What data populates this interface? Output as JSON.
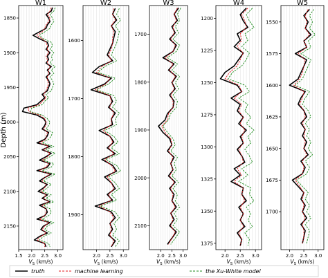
{
  "figure": {
    "ylabel": "Depth (m)",
    "xlabel_main": "V",
    "xlabel_sub": "S",
    "xlabel_unit": " (km/s)",
    "legend": [
      {
        "label": "truth",
        "color": "#000000",
        "style": "solid"
      },
      {
        "label": "machine learning",
        "color": "#e41a1c",
        "style": "dashed"
      },
      {
        "label": "the Xu-White model",
        "color": "#1a8a1a",
        "style": "dashed"
      }
    ]
  },
  "chart_data": [
    {
      "type": "line",
      "title": "W1",
      "xlabel": "Vs (km/s)",
      "ylabel": "Depth (m)",
      "xlim": [
        1.5,
        3.2
      ],
      "xticks": [
        1.5,
        2.0,
        2.5,
        3.0
      ],
      "ylim": [
        1832,
        2184
      ],
      "yticks": [
        1850,
        1900,
        1950,
        2000,
        2050,
        2100,
        2150
      ],
      "y_inverted": true,
      "grid": true,
      "depth": [
        1835,
        1840,
        1845,
        1850,
        1855,
        1860,
        1865,
        1870,
        1875,
        1880,
        1885,
        1890,
        1895,
        1900,
        1905,
        1910,
        1915,
        1920,
        1925,
        1930,
        1935,
        1940,
        1945,
        1950,
        1955,
        1960,
        1965,
        1970,
        1975,
        1980,
        1985,
        1990,
        1995,
        2000,
        2005,
        2010,
        2015,
        2020,
        2025,
        2030,
        2035,
        2040,
        2045,
        2050,
        2055,
        2060,
        2065,
        2070,
        2075,
        2080,
        2085,
        2090,
        2095,
        2100,
        2105,
        2110,
        2115,
        2120,
        2125,
        2130,
        2135,
        2140,
        2145,
        2150,
        2155,
        2160,
        2165,
        2170,
        2175,
        2180
      ],
      "series": [
        {
          "name": "truth",
          "values": [
            2.8,
            2.75,
            2.55,
            2.65,
            2.7,
            2.6,
            2.55,
            2.3,
            2.05,
            2.3,
            2.6,
            2.65,
            2.55,
            2.7,
            2.6,
            2.65,
            2.55,
            2.75,
            2.6,
            2.7,
            2.55,
            2.65,
            2.7,
            2.65,
            2.6,
            2.4,
            2.5,
            2.35,
            2.2,
            1.7,
            1.65,
            2.2,
            2.45,
            2.55,
            2.5,
            2.4,
            2.65,
            2.6,
            2.5,
            2.2,
            2.7,
            2.4,
            2.75,
            2.55,
            2.3,
            2.7,
            2.6,
            2.2,
            2.75,
            2.5,
            2.3,
            2.6,
            2.45,
            2.25,
            2.6,
            2.4,
            2.7,
            2.3,
            2.55,
            2.6,
            2.5,
            2.2,
            2.7,
            2.45,
            2.35,
            2.6,
            2.3,
            2.1,
            2.5,
            2.55
          ]
        },
        {
          "name": "machine learning",
          "values": [
            2.75,
            2.7,
            2.6,
            2.7,
            2.65,
            2.55,
            2.5,
            2.4,
            2.2,
            2.4,
            2.55,
            2.6,
            2.6,
            2.65,
            2.55,
            2.6,
            2.6,
            2.7,
            2.65,
            2.65,
            2.6,
            2.6,
            2.65,
            2.6,
            2.55,
            2.45,
            2.55,
            2.4,
            2.3,
            1.85,
            1.9,
            2.3,
            2.5,
            2.55,
            2.55,
            2.45,
            2.6,
            2.55,
            2.55,
            2.3,
            2.65,
            2.45,
            2.7,
            2.6,
            2.4,
            2.65,
            2.55,
            2.3,
            2.7,
            2.5,
            2.4,
            2.55,
            2.5,
            2.35,
            2.55,
            2.45,
            2.65,
            2.4,
            2.55,
            2.55,
            2.5,
            2.3,
            2.65,
            2.5,
            2.4,
            2.55,
            2.35,
            2.2,
            2.5,
            2.5
          ]
        },
        {
          "name": "the Xu-White model",
          "values": [
            2.9,
            2.85,
            2.7,
            2.8,
            2.85,
            2.75,
            2.7,
            2.5,
            2.3,
            2.45,
            2.75,
            2.8,
            2.7,
            2.85,
            2.75,
            2.8,
            2.7,
            2.9,
            2.75,
            2.85,
            2.7,
            2.8,
            2.85,
            2.8,
            2.75,
            2.55,
            2.65,
            2.5,
            2.4,
            2.0,
            1.95,
            2.4,
            2.6,
            2.7,
            2.65,
            2.55,
            2.8,
            2.75,
            2.65,
            2.4,
            2.85,
            2.55,
            2.9,
            2.7,
            2.45,
            2.85,
            2.75,
            2.4,
            2.9,
            2.65,
            2.45,
            2.75,
            2.6,
            2.4,
            2.75,
            2.55,
            2.85,
            2.45,
            2.7,
            2.75,
            2.65,
            2.4,
            2.85,
            2.6,
            2.5,
            2.75,
            2.45,
            2.3,
            2.65,
            2.7
          ]
        }
      ]
    },
    {
      "type": "line",
      "title": "W2",
      "xlabel": "Vs (km/s)",
      "ylabel": "",
      "xlim": [
        1.5,
        3.2
      ],
      "xticks": [
        2.0,
        2.5,
        3.0
      ],
      "ylim": [
        1540,
        1960
      ],
      "yticks": [
        1600,
        1700,
        1800,
        1900
      ],
      "y_inverted": true,
      "grid": true,
      "depth": [
        1545,
        1555,
        1565,
        1575,
        1585,
        1595,
        1605,
        1615,
        1625,
        1635,
        1645,
        1655,
        1665,
        1675,
        1685,
        1695,
        1705,
        1715,
        1725,
        1735,
        1745,
        1755,
        1765,
        1775,
        1785,
        1795,
        1805,
        1815,
        1825,
        1835,
        1845,
        1855,
        1865,
        1875,
        1885,
        1895,
        1905,
        1915,
        1925,
        1935,
        1945,
        1955
      ],
      "series": [
        {
          "name": "truth",
          "values": [
            2.7,
            2.6,
            2.75,
            2.55,
            2.7,
            2.65,
            2.6,
            2.5,
            2.4,
            2.6,
            2.1,
            1.85,
            2.55,
            2.3,
            1.8,
            2.5,
            2.6,
            2.45,
            2.7,
            2.55,
            2.6,
            2.1,
            2.5,
            2.65,
            2.4,
            2.7,
            2.2,
            2.6,
            2.75,
            2.3,
            2.55,
            2.7,
            2.4,
            2.6,
            1.95,
            2.55,
            2.7,
            2.5,
            2.6,
            2.45,
            2.7,
            2.55
          ]
        },
        {
          "name": "machine learning",
          "values": [
            2.65,
            2.6,
            2.7,
            2.55,
            2.65,
            2.6,
            2.6,
            2.55,
            2.45,
            2.55,
            2.2,
            2.0,
            2.5,
            2.35,
            1.95,
            2.5,
            2.55,
            2.5,
            2.65,
            2.55,
            2.55,
            2.25,
            2.5,
            2.6,
            2.45,
            2.65,
            2.3,
            2.55,
            2.7,
            2.4,
            2.55,
            2.65,
            2.45,
            2.55,
            2.1,
            2.5,
            2.65,
            2.5,
            2.55,
            2.5,
            2.65,
            2.55
          ]
        },
        {
          "name": "the Xu-White model",
          "values": [
            2.85,
            2.75,
            2.9,
            2.7,
            2.85,
            2.8,
            2.75,
            2.65,
            2.55,
            2.75,
            2.3,
            2.05,
            2.7,
            2.45,
            2.0,
            2.65,
            2.75,
            2.6,
            2.85,
            2.7,
            2.75,
            2.3,
            2.65,
            2.8,
            2.55,
            2.85,
            2.35,
            2.75,
            2.9,
            2.45,
            2.7,
            2.85,
            2.55,
            2.75,
            2.15,
            2.7,
            2.85,
            2.65,
            2.75,
            2.6,
            2.85,
            2.7
          ]
        }
      ]
    },
    {
      "type": "line",
      "title": "W3",
      "xlabel": "Vs (km/s)",
      "ylabel": "",
      "xlim": [
        1.5,
        3.2
      ],
      "xticks": [
        2.0,
        2.5,
        3.0
      ],
      "ylim": [
        1640,
        2150
      ],
      "yticks": [
        1700,
        1800,
        1900,
        2000,
        2100
      ],
      "y_inverted": true,
      "grid": true,
      "depth": [
        1645,
        1658,
        1671,
        1684,
        1697,
        1710,
        1723,
        1736,
        1749,
        1762,
        1775,
        1788,
        1801,
        1814,
        1827,
        1840,
        1853,
        1866,
        1879,
        1892,
        1905,
        1918,
        1931,
        1944,
        1957,
        1970,
        1983,
        1996,
        2009,
        2022,
        2035,
        2048,
        2061,
        2074,
        2087,
        2100,
        2113,
        2126,
        2139
      ],
      "series": [
        {
          "name": "truth",
          "values": [
            2.8,
            2.6,
            2.75,
            2.5,
            2.65,
            2.4,
            2.7,
            2.55,
            2.1,
            2.6,
            2.35,
            2.7,
            2.5,
            2.65,
            2.4,
            2.6,
            2.55,
            2.3,
            2.2,
            1.9,
            2.1,
            2.4,
            2.5,
            2.3,
            2.6,
            2.45,
            2.55,
            2.35,
            2.65,
            2.4,
            2.6,
            2.5,
            2.7,
            2.45,
            2.6,
            2.4,
            2.7,
            2.5,
            2.3
          ]
        },
        {
          "name": "machine learning",
          "values": [
            2.75,
            2.6,
            2.7,
            2.55,
            2.6,
            2.45,
            2.65,
            2.55,
            2.2,
            2.55,
            2.4,
            2.65,
            2.5,
            2.6,
            2.45,
            2.55,
            2.55,
            2.35,
            2.3,
            2.05,
            2.2,
            2.45,
            2.5,
            2.35,
            2.55,
            2.45,
            2.55,
            2.4,
            2.6,
            2.45,
            2.55,
            2.5,
            2.65,
            2.45,
            2.55,
            2.45,
            2.65,
            2.5,
            2.35
          ]
        },
        {
          "name": "the Xu-White model",
          "values": [
            2.9,
            2.75,
            2.85,
            2.65,
            2.8,
            2.55,
            2.85,
            2.7,
            2.3,
            2.75,
            2.5,
            2.85,
            2.65,
            2.8,
            2.55,
            2.75,
            2.7,
            2.45,
            2.35,
            2.1,
            2.3,
            2.55,
            2.65,
            2.45,
            2.75,
            2.6,
            2.7,
            2.5,
            2.8,
            2.55,
            2.75,
            2.65,
            2.85,
            2.6,
            2.75,
            2.55,
            2.85,
            2.65,
            2.45
          ]
        }
      ]
    },
    {
      "type": "line",
      "title": "W4",
      "xlabel": "Vs (km/s)",
      "ylabel": "",
      "xlim": [
        1.7,
        3.2
      ],
      "xticks": [
        2.0,
        2.5,
        3.0
      ],
      "ylim": [
        1190,
        1380
      ],
      "yticks": [
        1200,
        1225,
        1250,
        1275,
        1300,
        1325,
        1350,
        1375
      ],
      "y_inverted": true,
      "grid": true,
      "depth": [
        1192,
        1197,
        1202,
        1207,
        1212,
        1217,
        1222,
        1227,
        1232,
        1237,
        1242,
        1247,
        1252,
        1257,
        1262,
        1267,
        1272,
        1277,
        1282,
        1287,
        1292,
        1297,
        1302,
        1307,
        1312,
        1317,
        1322,
        1327,
        1332,
        1337,
        1342,
        1347,
        1352,
        1357,
        1362,
        1367,
        1372,
        1377
      ],
      "series": [
        {
          "name": "truth",
          "values": [
            2.7,
            2.5,
            2.6,
            2.75,
            2.4,
            2.5,
            2.3,
            2.6,
            2.45,
            2.3,
            2.0,
            1.85,
            2.4,
            2.55,
            2.2,
            2.5,
            2.4,
            2.6,
            2.45,
            2.7,
            2.5,
            2.6,
            2.4,
            2.55,
            2.65,
            2.3,
            2.5,
            2.2,
            2.6,
            2.55,
            2.7,
            2.45,
            2.6,
            2.5,
            2.65,
            2.4,
            2.55,
            2.5
          ]
        },
        {
          "name": "machine learning",
          "values": [
            2.75,
            2.55,
            2.65,
            2.7,
            2.5,
            2.55,
            2.4,
            2.6,
            2.5,
            2.4,
            2.15,
            2.0,
            2.45,
            2.55,
            2.3,
            2.55,
            2.45,
            2.6,
            2.5,
            2.65,
            2.55,
            2.6,
            2.45,
            2.55,
            2.6,
            2.4,
            2.55,
            2.3,
            2.6,
            2.55,
            2.65,
            2.5,
            2.6,
            2.5,
            2.6,
            2.45,
            2.55,
            2.5
          ]
        },
        {
          "name": "the Xu-White model",
          "values": [
            2.9,
            2.7,
            2.8,
            2.95,
            2.65,
            2.75,
            2.55,
            2.8,
            2.7,
            2.55,
            2.25,
            2.1,
            2.65,
            2.8,
            2.45,
            2.75,
            2.65,
            2.85,
            2.7,
            2.95,
            2.75,
            2.85,
            2.65,
            2.8,
            2.9,
            2.55,
            2.75,
            2.45,
            2.85,
            2.8,
            2.95,
            2.7,
            2.85,
            2.75,
            2.9,
            2.65,
            2.8,
            2.75
          ]
        }
      ]
    },
    {
      "type": "line",
      "title": "W5",
      "xlabel": "Vs (km/s)",
      "ylabel": "",
      "xlim": [
        1.7,
        3.2
      ],
      "xticks": [
        2.0,
        2.5,
        3.0
      ],
      "ylim": [
        1537,
        1730
      ],
      "yticks": [
        1550,
        1575,
        1600,
        1625,
        1650,
        1675,
        1700
      ],
      "y_inverted": true,
      "grid": true,
      "depth": [
        1540,
        1545,
        1550,
        1555,
        1560,
        1565,
        1570,
        1575,
        1580,
        1585,
        1590,
        1595,
        1600,
        1605,
        1610,
        1615,
        1620,
        1625,
        1630,
        1635,
        1640,
        1645,
        1650,
        1655,
        1660,
        1665,
        1670,
        1675,
        1680,
        1685,
        1690,
        1695,
        1700,
        1705,
        1710,
        1715,
        1720,
        1725
      ],
      "series": [
        {
          "name": "truth",
          "values": [
            2.7,
            2.5,
            2.65,
            2.55,
            2.75,
            2.5,
            2.6,
            2.2,
            2.6,
            2.5,
            2.4,
            2.3,
            2.0,
            2.55,
            2.4,
            2.3,
            2.5,
            2.6,
            2.4,
            2.55,
            2.45,
            2.6,
            2.5,
            2.65,
            2.4,
            2.55,
            2.45,
            2.1,
            2.3,
            2.5,
            2.4,
            2.55,
            2.45,
            2.6,
            2.4,
            2.55,
            2.5,
            2.45
          ]
        },
        {
          "name": "machine learning",
          "values": [
            2.65,
            2.55,
            2.6,
            2.55,
            2.7,
            2.5,
            2.6,
            2.3,
            2.55,
            2.5,
            2.45,
            2.35,
            2.15,
            2.5,
            2.45,
            2.35,
            2.5,
            2.55,
            2.45,
            2.55,
            2.5,
            2.55,
            2.5,
            2.6,
            2.45,
            2.5,
            2.45,
            2.2,
            2.35,
            2.5,
            2.45,
            2.5,
            2.45,
            2.55,
            2.45,
            2.5,
            2.5,
            2.45
          ]
        },
        {
          "name": "the Xu-White model",
          "values": [
            2.85,
            2.7,
            2.8,
            2.7,
            2.9,
            2.65,
            2.75,
            2.4,
            2.75,
            2.65,
            2.55,
            2.45,
            2.2,
            2.7,
            2.55,
            2.45,
            2.65,
            2.75,
            2.55,
            2.7,
            2.6,
            2.75,
            2.65,
            2.8,
            2.55,
            2.7,
            2.6,
            2.25,
            2.45,
            2.65,
            2.55,
            2.7,
            2.6,
            2.75,
            2.55,
            2.7,
            2.65,
            2.6
          ]
        }
      ]
    }
  ]
}
